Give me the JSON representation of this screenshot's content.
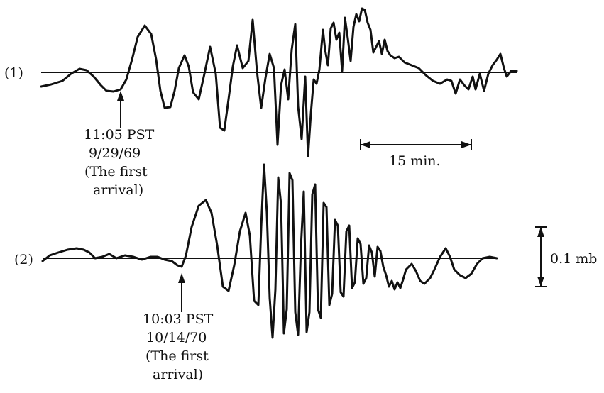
{
  "traces": [
    {
      "id": "1",
      "label": "(1)",
      "arrival": {
        "time": "11:05 PST",
        "date": "9/29/69",
        "note_line1": "(The first",
        "note_line2": "arrival)"
      }
    },
    {
      "id": "2",
      "label": "(2)",
      "arrival": {
        "time": "10:03 PST",
        "date": "10/14/70",
        "note_line1": "(The first",
        "note_line2": "arrival)"
      }
    }
  ],
  "time_scale": {
    "label": "15 min."
  },
  "amplitude_scale": {
    "label": "0.1 mb"
  }
}
